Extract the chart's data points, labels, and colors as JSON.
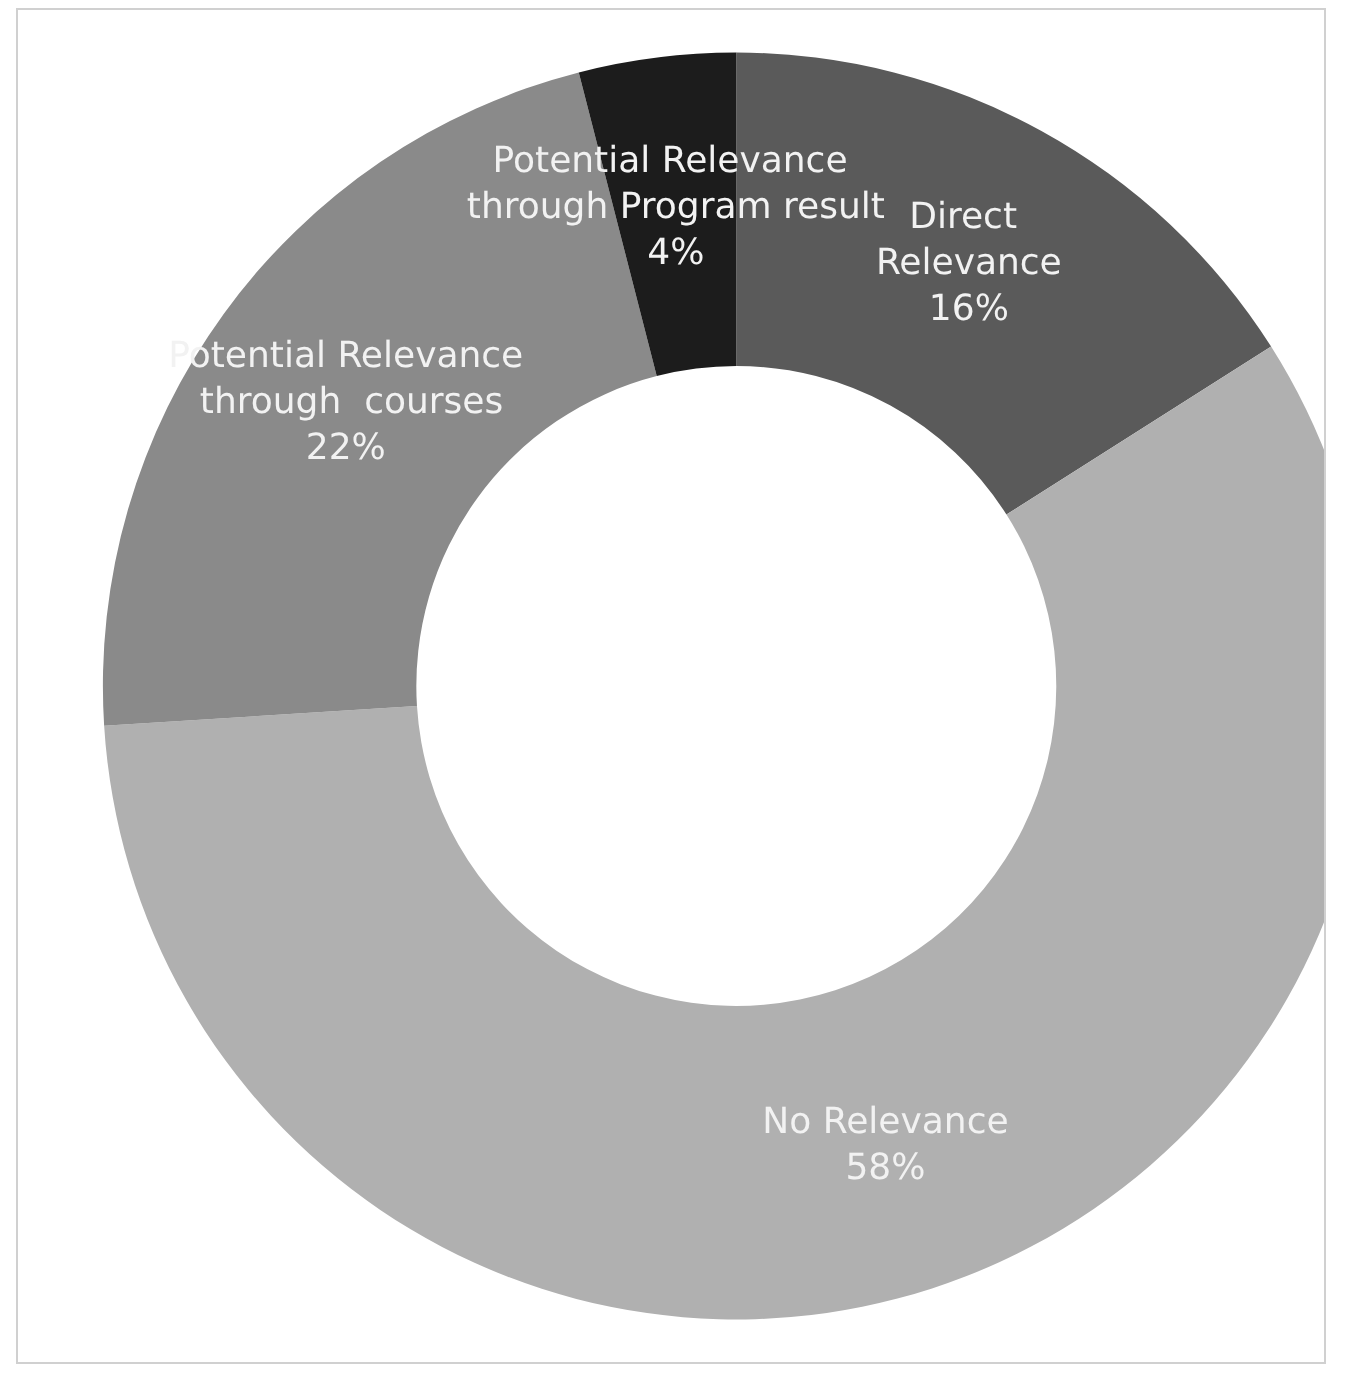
{
  "chart_data": {
    "type": "donut",
    "categories": [
      "Direct Relevance",
      "No Relevance",
      "Potential Relevance through  courses",
      "Potential Relevance through Program result"
    ],
    "values": [
      16,
      58,
      22,
      4
    ],
    "value_labels": [
      "16%",
      "58%",
      "22%",
      "4%"
    ],
    "colors": [
      "#5a5a5a",
      "#b0b0b0",
      "#8a8a8a",
      "#1c1c1c"
    ],
    "legend": false
  }
}
